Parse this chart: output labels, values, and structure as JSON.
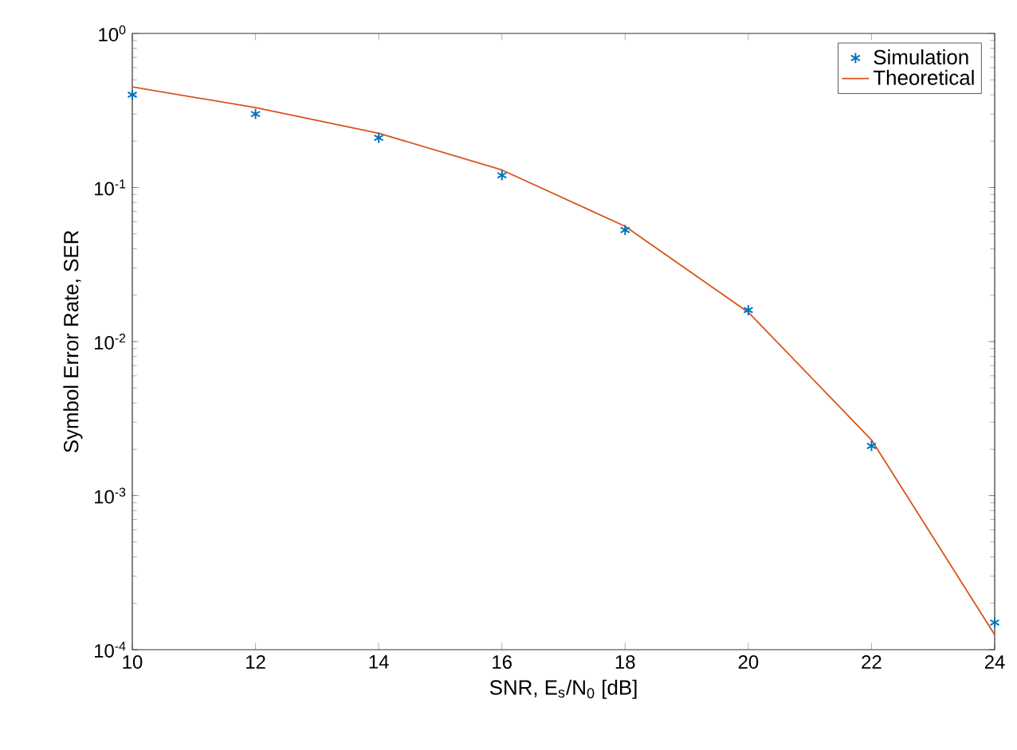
{
  "chart_data": {
    "type": "line",
    "xlabel": "SNR, E$_{s}$/N$_{0}$ [dB]",
    "ylabel": "Symbol Error Rate, SER",
    "x": [
      10,
      12,
      14,
      16,
      18,
      20,
      22,
      24
    ],
    "series": [
      {
        "name": "Simulation",
        "type": "scatter",
        "color": "#0072bd",
        "marker": "cross",
        "values": [
          0.4,
          0.3,
          0.21,
          0.12,
          0.053,
          0.016,
          0.0021,
          0.00015
        ]
      },
      {
        "name": "Theoretical",
        "color": "#d95319",
        "marker": "none",
        "line_style": "solid",
        "values": [
          0.45,
          0.33,
          0.225,
          0.13,
          0.056,
          0.0155,
          0.0023,
          0.000125
        ]
      }
    ],
    "log": "y",
    "xlim": [
      10,
      24
    ],
    "ylim": [
      0.0001,
      1
    ],
    "xticks": [
      10,
      12,
      14,
      16,
      18,
      20,
      22,
      24
    ],
    "yticks": [
      {
        "value": 0.0001,
        "label": "10$^{-4}$"
      },
      {
        "value": 0.001,
        "label": "10$^{-3}$"
      },
      {
        "value": 0.01,
        "label": "10$^{-2}$"
      },
      {
        "value": 0.1,
        "label": "10$^{-1}$"
      },
      {
        "value": 1,
        "label": "10$^{0}$"
      }
    ],
    "grid": false,
    "legend": "top right"
  }
}
